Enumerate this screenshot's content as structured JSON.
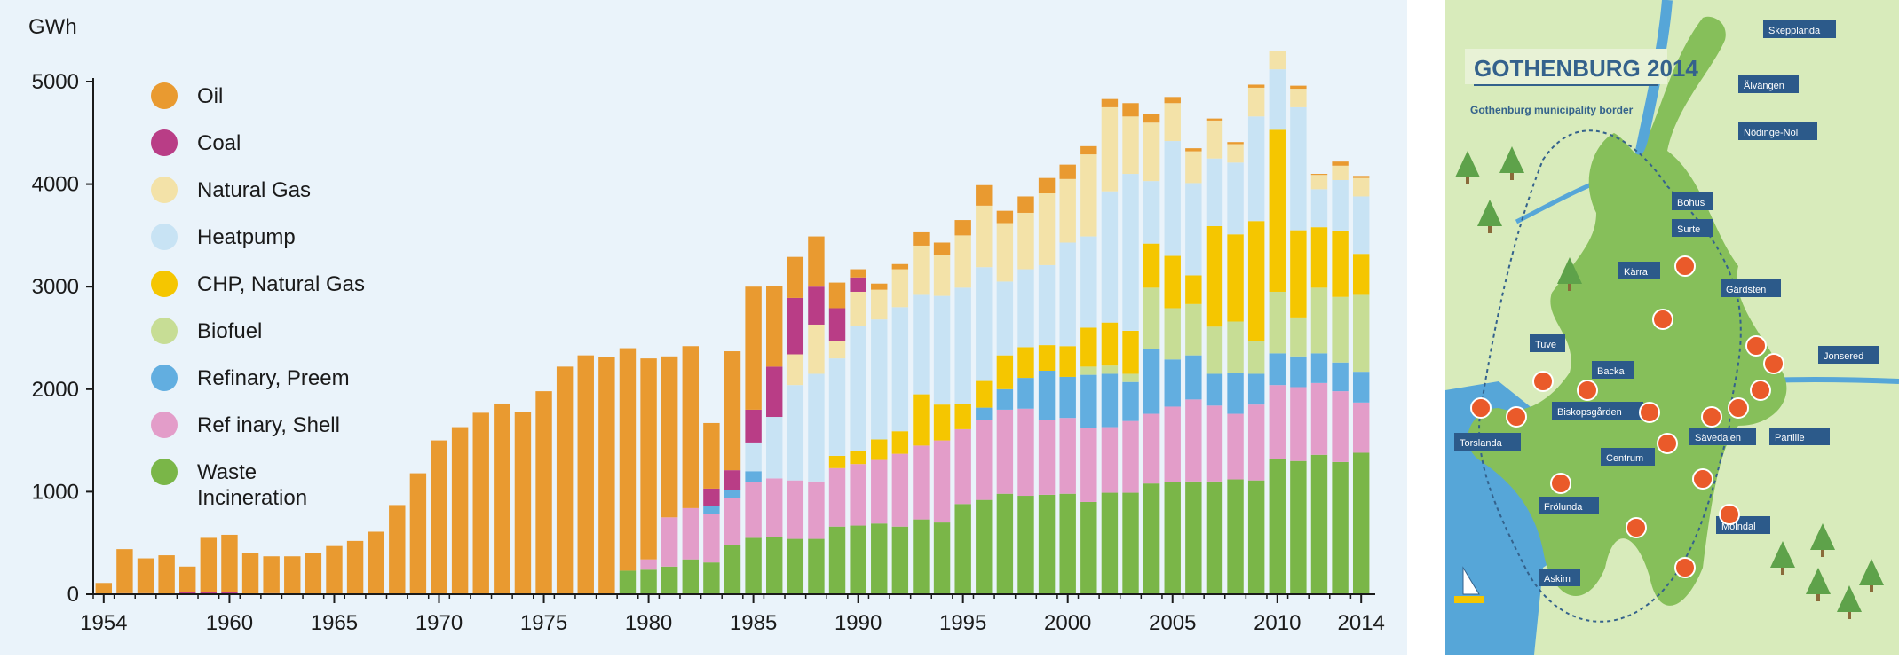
{
  "chart_data": {
    "type": "bar",
    "stacked": true,
    "ylabel": "GWh",
    "ylim": [
      0,
      5000
    ],
    "yticks": [
      0,
      1000,
      2000,
      3000,
      4000,
      5000
    ],
    "xlim": [
      1954,
      2014
    ],
    "xtick_labels": [
      "1954",
      "1960",
      "1965",
      "1970",
      "1975",
      "1980",
      "1985",
      "1990",
      "1995",
      "2000",
      "2005",
      "2010",
      "2014"
    ],
    "grid": false,
    "legend_position": "top-left",
    "years": [
      1954,
      1955,
      1956,
      1957,
      1958,
      1959,
      1960,
      1961,
      1962,
      1963,
      1964,
      1965,
      1966,
      1967,
      1968,
      1969,
      1970,
      1971,
      1972,
      1973,
      1974,
      1975,
      1976,
      1977,
      1978,
      1979,
      1980,
      1981,
      1982,
      1983,
      1984,
      1985,
      1986,
      1987,
      1988,
      1989,
      1990,
      1991,
      1992,
      1993,
      1994,
      1995,
      1996,
      1997,
      1998,
      1999,
      2000,
      2001,
      2002,
      2003,
      2004,
      2005,
      2006,
      2007,
      2008,
      2009,
      2010,
      2011,
      2012,
      2013,
      2014
    ],
    "series": [
      {
        "name": "Waste Incineration",
        "color": "#7ab648",
        "values": [
          0,
          0,
          0,
          0,
          0,
          0,
          0,
          0,
          0,
          0,
          0,
          0,
          0,
          0,
          0,
          0,
          0,
          0,
          0,
          0,
          0,
          0,
          0,
          0,
          0,
          230,
          240,
          270,
          340,
          310,
          480,
          550,
          560,
          540,
          540,
          660,
          670,
          690,
          660,
          730,
          700,
          880,
          920,
          980,
          960,
          970,
          980,
          900,
          990,
          990,
          1080,
          1090,
          1100,
          1100,
          1120,
          1110,
          1320,
          1300,
          1360,
          1290,
          1380
        ]
      },
      {
        "name": "Ref inary, Shell",
        "color": "#e39dc9",
        "values": [
          0,
          0,
          0,
          0,
          0,
          0,
          0,
          0,
          0,
          0,
          0,
          0,
          0,
          0,
          0,
          0,
          0,
          0,
          0,
          0,
          0,
          0,
          0,
          0,
          0,
          0,
          100,
          480,
          500,
          470,
          460,
          540,
          570,
          570,
          560,
          570,
          600,
          620,
          710,
          720,
          800,
          730,
          780,
          820,
          850,
          730,
          740,
          720,
          640,
          700,
          680,
          740,
          800,
          740,
          640,
          740,
          720,
          720,
          700,
          690,
          490
        ]
      },
      {
        "name": "Refinary, Preem",
        "color": "#62aee0",
        "values": [
          0,
          0,
          0,
          0,
          0,
          0,
          0,
          0,
          0,
          0,
          0,
          0,
          0,
          0,
          0,
          0,
          0,
          0,
          0,
          0,
          0,
          0,
          0,
          0,
          0,
          0,
          0,
          0,
          0,
          80,
          80,
          110,
          0,
          0,
          0,
          0,
          0,
          0,
          0,
          0,
          0,
          0,
          120,
          200,
          300,
          480,
          400,
          520,
          520,
          380,
          630,
          460,
          430,
          310,
          400,
          300,
          310,
          300,
          290,
          280,
          300
        ]
      },
      {
        "name": "Biofuel",
        "color": "#c7dd95",
        "values": [
          0,
          0,
          0,
          0,
          0,
          0,
          0,
          0,
          0,
          0,
          0,
          0,
          0,
          0,
          0,
          0,
          0,
          0,
          0,
          0,
          0,
          0,
          0,
          0,
          0,
          0,
          0,
          0,
          0,
          0,
          0,
          0,
          0,
          0,
          0,
          0,
          0,
          0,
          0,
          0,
          0,
          0,
          0,
          0,
          0,
          0,
          0,
          80,
          80,
          80,
          600,
          500,
          500,
          460,
          500,
          320,
          600,
          380,
          640,
          640,
          750
        ]
      },
      {
        "name": "CHP, Natural Gas",
        "color": "#f5c600",
        "values": [
          0,
          0,
          0,
          0,
          0,
          0,
          0,
          0,
          0,
          0,
          0,
          0,
          0,
          0,
          0,
          0,
          0,
          0,
          0,
          0,
          0,
          0,
          0,
          0,
          0,
          0,
          0,
          0,
          0,
          0,
          0,
          0,
          0,
          0,
          0,
          120,
          130,
          200,
          220,
          500,
          350,
          250,
          260,
          330,
          300,
          250,
          300,
          380,
          420,
          420,
          430,
          510,
          280,
          980,
          850,
          1170,
          1580,
          850,
          590,
          640,
          400
        ]
      },
      {
        "name": "Heatpump",
        "color": "#c8e3f4",
        "values": [
          0,
          0,
          0,
          0,
          0,
          0,
          0,
          0,
          0,
          0,
          0,
          0,
          0,
          0,
          0,
          0,
          0,
          0,
          0,
          0,
          0,
          0,
          0,
          0,
          0,
          0,
          0,
          0,
          0,
          0,
          0,
          280,
          600,
          930,
          1050,
          950,
          1220,
          1170,
          1210,
          970,
          1060,
          1130,
          1110,
          720,
          760,
          780,
          1010,
          890,
          1280,
          1530,
          610,
          1120,
          900,
          660,
          700,
          1020,
          590,
          1200,
          370,
          500,
          560
        ]
      },
      {
        "name": "Natural Gas",
        "color": "#f3e2a8",
        "values": [
          0,
          0,
          0,
          0,
          0,
          0,
          0,
          0,
          0,
          0,
          0,
          0,
          0,
          0,
          0,
          0,
          0,
          0,
          0,
          0,
          0,
          0,
          0,
          0,
          0,
          0,
          0,
          0,
          0,
          0,
          0,
          0,
          0,
          300,
          480,
          170,
          330,
          290,
          370,
          480,
          400,
          510,
          600,
          570,
          550,
          700,
          620,
          800,
          820,
          560,
          570,
          370,
          310,
          370,
          180,
          280,
          180,
          180,
          140,
          140,
          180
        ]
      },
      {
        "name": "Coal",
        "color": "#b93d86",
        "values": [
          0,
          10,
          10,
          0,
          20,
          20,
          20,
          0,
          10,
          0,
          0,
          0,
          0,
          0,
          0,
          0,
          0,
          0,
          0,
          0,
          0,
          0,
          0,
          0,
          0,
          0,
          0,
          0,
          0,
          170,
          190,
          320,
          490,
          550,
          370,
          320,
          140,
          0,
          0,
          0,
          0,
          0,
          0,
          0,
          0,
          0,
          0,
          0,
          0,
          0,
          0,
          0,
          0,
          0,
          0,
          0,
          0,
          0,
          0,
          0,
          0
        ]
      },
      {
        "name": "Oil",
        "color": "#e99a30",
        "values": [
          110,
          430,
          340,
          380,
          250,
          530,
          560,
          400,
          360,
          370,
          400,
          470,
          520,
          610,
          870,
          1180,
          1500,
          1630,
          1770,
          1860,
          1780,
          1980,
          2220,
          2330,
          2310,
          2170,
          1960,
          1570,
          1580,
          640,
          1160,
          1200,
          790,
          400,
          490,
          250,
          80,
          60,
          50,
          130,
          120,
          150,
          200,
          120,
          160,
          150,
          140,
          80,
          80,
          130,
          80,
          60,
          30,
          20,
          20,
          30,
          0,
          30,
          10,
          40,
          20
        ]
      }
    ]
  },
  "map": {
    "title": "GOTHENBURG 2014",
    "border_label": "Gothenburg municipality border",
    "place_labels": [
      "Skepplanda",
      "Älvängen",
      "Nödinge-Nol",
      "Bohus",
      "Surte",
      "Kärra",
      "Gärdsten",
      "Tuve",
      "Backa",
      "Jonsered",
      "Biskopsgården",
      "Torslanda",
      "Centrum",
      "Sävedalen",
      "Partille",
      "Frölunda",
      "Mölndal",
      "Askim"
    ]
  }
}
